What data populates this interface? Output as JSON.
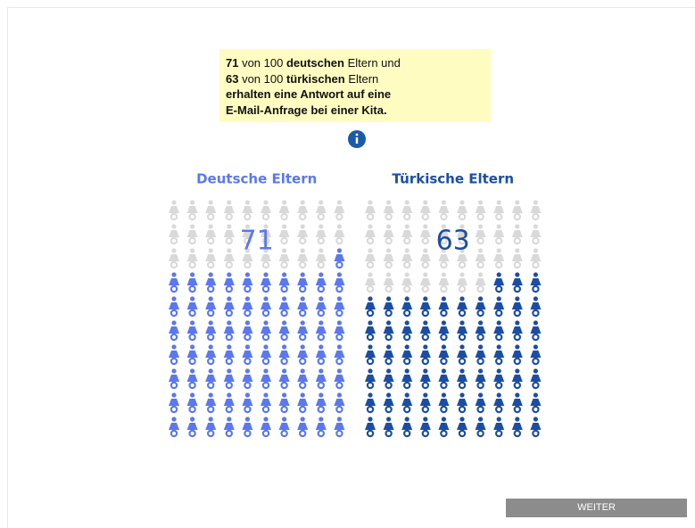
{
  "info_box": {
    "lines": [
      [
        {
          "text": "71",
          "bold": true
        },
        {
          "text": " von 100 ",
          "bold": false
        },
        {
          "text": "deutschen",
          "bold": true
        },
        {
          "text": " Eltern und",
          "bold": false
        }
      ],
      [
        {
          "text": "63",
          "bold": true
        },
        {
          "text": " von 100 ",
          "bold": false
        },
        {
          "text": "türkischen",
          "bold": true
        },
        {
          "text": " Eltern",
          "bold": false
        }
      ],
      [
        {
          "text": "erhalten eine Antwort auf eine",
          "bold": true
        }
      ],
      [
        {
          "text": "E-Mail-Anfrage bei einer Kita.",
          "bold": true
        }
      ]
    ]
  },
  "chart_data": [
    {
      "type": "pictograph",
      "title": "Deutsche Eltern",
      "value": 71,
      "total": 100,
      "color": "#5b78ee"
    },
    {
      "type": "pictograph",
      "title": "Türkische Eltern",
      "value": 63,
      "total": 100,
      "color": "#1b4ea3"
    }
  ],
  "button": {
    "label": "WEITER"
  }
}
